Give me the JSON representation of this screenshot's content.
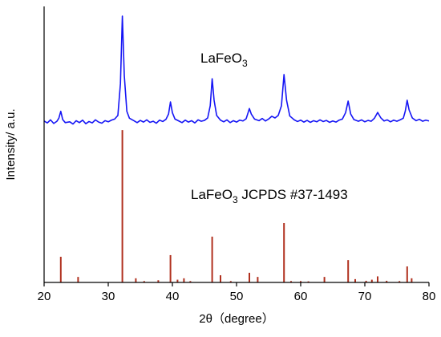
{
  "chart_data": {
    "type": "xrd",
    "y_label": "Intensity/ a.u.",
    "x_label": "2θ（degree）",
    "xlim": [
      20,
      80
    ],
    "xticks": [
      20,
      30,
      40,
      50,
      60,
      70,
      80
    ],
    "ylim": [
      0,
      100
    ],
    "annotations": [
      {
        "text": "LaFeO",
        "sub": "3"
      },
      {
        "text": "LaFeO",
        "sub": "3",
        "after": " JCPDS #37-1493"
      }
    ],
    "series": [
      {
        "type": "line",
        "color": "#1515f5",
        "x": [
          20,
          20.5,
          21,
          21.5,
          22,
          22.3,
          22.6,
          22.9,
          23.3,
          24,
          24.5,
          25,
          25.5,
          26,
          26.5,
          27,
          27.5,
          28,
          28.5,
          29,
          29.5,
          30,
          30.5,
          31,
          31.5,
          31.9,
          32.2,
          32.5,
          32.9,
          33.3,
          34,
          34.5,
          35,
          35.5,
          36,
          36.5,
          37,
          37.5,
          38,
          38.5,
          39,
          39.4,
          39.7,
          40,
          40.4,
          41,
          41.5,
          42,
          42.5,
          43,
          43.5,
          44,
          44.5,
          45,
          45.5,
          45.9,
          46.2,
          46.5,
          46.9,
          47.5,
          48,
          48.5,
          49,
          49.5,
          50,
          50.5,
          51,
          51.5,
          51.8,
          52,
          52.3,
          52.8,
          53.5,
          54,
          54.5,
          55,
          55.5,
          56,
          56.5,
          57,
          57.4,
          57.8,
          58.3,
          59,
          59.5,
          60,
          60.5,
          61,
          61.5,
          62,
          62.5,
          63,
          63.5,
          64,
          64.5,
          65,
          65.5,
          66,
          66.5,
          67,
          67.4,
          67.8,
          68.3,
          69,
          69.5,
          70,
          70.5,
          71,
          71.5,
          72,
          72.5,
          73,
          73.5,
          74,
          74.5,
          75,
          75.5,
          76,
          76.3,
          76.6,
          76.9,
          77.4,
          78,
          78.5,
          79,
          79.5,
          80
        ],
        "values": [
          58.5,
          57.8,
          58.9,
          57.6,
          58.4,
          59.5,
          62,
          59,
          57.9,
          58.2,
          57.4,
          58.6,
          57.9,
          58.8,
          57.5,
          58.3,
          57.8,
          58.9,
          58.1,
          57.7,
          58.6,
          58.2,
          58.8,
          59.2,
          60.5,
          72,
          96.5,
          75,
          62,
          59.5,
          58.6,
          57.9,
          58.7,
          58.1,
          58.9,
          58,
          58.4,
          57.7,
          58.8,
          58.3,
          59.1,
          61,
          65.4,
          61.5,
          59.2,
          58.5,
          57.9,
          58.8,
          58.1,
          58.6,
          57.8,
          58.9,
          58.4,
          58.7,
          59.6,
          64,
          73.8,
          66,
          60.5,
          58.8,
          58.2,
          58.9,
          57.9,
          58.6,
          58.1,
          58.8,
          58.5,
          59.3,
          61.5,
          63,
          61,
          59.2,
          58.6,
          59.4,
          58.5,
          59.2,
          60.2,
          59.6,
          60.5,
          64,
          75.3,
          66,
          60.3,
          58.9,
          58.3,
          58.8,
          58.1,
          58.7,
          58,
          58.6,
          58.2,
          58.9,
          58.3,
          58.7,
          58,
          58.5,
          58.1,
          58.8,
          59.2,
          61.5,
          65.7,
          61,
          59,
          58.4,
          58.9,
          58.2,
          58.7,
          58.4,
          59.5,
          61.6,
          59.6,
          58.5,
          58.9,
          58.2,
          58.8,
          58.4,
          58.9,
          59.5,
          62,
          66,
          62.5,
          59.6,
          58.6,
          59.1,
          58.4,
          58.8,
          58.5
        ]
      },
      {
        "type": "stem",
        "color": "#b0301e",
        "x": [
          22.6,
          25.3,
          32.2,
          34.3,
          35.6,
          37.8,
          39.7,
          40.8,
          41.8,
          42.8,
          46.2,
          47.5,
          49.1,
          52,
          53.3,
          57.4,
          58.5,
          60,
          61.2,
          63.7,
          67.4,
          68.5,
          70.2,
          71.1,
          72,
          73.4,
          75.4,
          76.6,
          77.3
        ],
        "values": [
          9.3,
          2,
          55.2,
          1.5,
          0.5,
          0.8,
          9.9,
          1,
          1.5,
          0.5,
          16.6,
          2.6,
          0.5,
          3.5,
          2,
          21.5,
          0.5,
          0.5,
          0.4,
          2,
          8.1,
          1.2,
          0.6,
          1,
          2.2,
          0.6,
          0.5,
          5.8,
          1.5
        ]
      }
    ]
  }
}
